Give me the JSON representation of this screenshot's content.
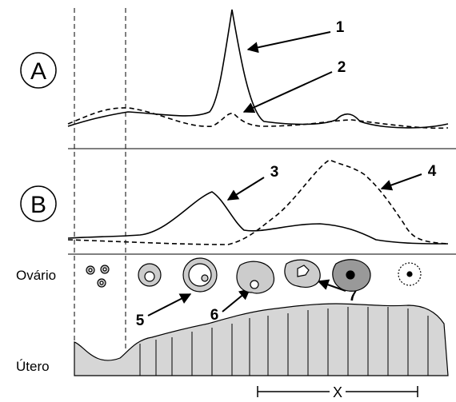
{
  "panels": [
    {
      "label": "A"
    },
    {
      "label": "B"
    }
  ],
  "callouts": [
    "1",
    "2",
    "3",
    "4",
    "5",
    "6",
    "7"
  ],
  "rows": [
    "Ovário",
    "Útero"
  ],
  "interval": {
    "label": "X"
  }
}
